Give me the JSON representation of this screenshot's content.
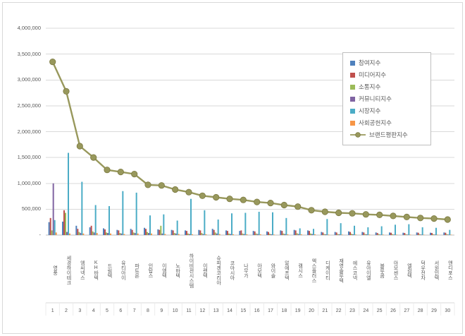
{
  "window": {
    "background": "#ffffff",
    "border_color": "#d9d9d9"
  },
  "axis_text_color": "#595959",
  "gridline_color": "#d9d9d9",
  "axis_line_color": "#bfbfbf",
  "chart_data": {
    "type": "bar",
    "subtype": "clustered-bars-with-line-overlay",
    "title": "",
    "legend_position": "right-top-inside",
    "grid": true,
    "categories": [
      "영풍",
      "세경하이테크",
      "엠씨넥스",
      "KH바텍",
      "드림텍",
      "유티아이",
      "파트론",
      "인탑스",
      "이엠텍",
      "노바텍",
      "하이비젼시스템",
      "이랜텍",
      "슈피겐코리아",
      "코아시아",
      "나무가",
      "아모텍",
      "와이솔",
      "알에프텍",
      "캠시스",
      "엑스플러스",
      "디케이티",
      "재영솔루텍",
      "에스코넥",
      "유아이엘",
      "블루콤",
      "아모센스",
      "엘컴텍",
      "덕우전자",
      "서원인텍",
      "앤디포스"
    ],
    "ranks": [
      "1",
      "2",
      "3",
      "4",
      "5",
      "6",
      "7",
      "8",
      "9",
      "10",
      "11",
      "12",
      "13",
      "14",
      "15",
      "16",
      "17",
      "18",
      "19",
      "20",
      "21",
      "22",
      "23",
      "24",
      "25",
      "26",
      "27",
      "28",
      "29",
      "30"
    ],
    "y_axis": {
      "min": 0,
      "max": 4000000,
      "tick_step": 500000,
      "tick_labels": [
        "-",
        "500,000",
        "1,000,000",
        "1,500,000",
        "2,000,000",
        "2,500,000",
        "3,000,000",
        "3,500,000",
        "4,000,000"
      ]
    },
    "series": [
      {
        "name": "참여지수",
        "type": "bar",
        "color": "#4F81BD",
        "values": [
          250000,
          260000,
          180000,
          150000,
          130000,
          100000,
          120000,
          140000,
          110000,
          100000,
          90000,
          100000,
          120000,
          90000,
          80000,
          80000,
          70000,
          90000,
          100000,
          90000,
          60000,
          60000,
          70000,
          60000,
          50000,
          50000,
          45000,
          50000,
          45000,
          50000
        ]
      },
      {
        "name": "미디어지수",
        "type": "bar",
        "color": "#C0504D",
        "values": [
          330000,
          480000,
          120000,
          180000,
          110000,
          90000,
          100000,
          120000,
          100000,
          90000,
          80000,
          90000,
          100000,
          80000,
          90000,
          70000,
          60000,
          80000,
          90000,
          80000,
          50000,
          50000,
          60000,
          50000,
          40000,
          45000,
          40000,
          45000,
          40000,
          45000
        ]
      },
      {
        "name": "소통지수",
        "type": "bar",
        "color": "#9BBB59",
        "values": [
          90000,
          430000,
          60000,
          70000,
          50000,
          40000,
          50000,
          60000,
          180000,
          40000,
          30000,
          40000,
          50000,
          30000,
          30000,
          30000,
          25000,
          30000,
          35000,
          30000,
          20000,
          20000,
          25000,
          20000,
          20000,
          18000,
          15000,
          18000,
          15000,
          18000
        ]
      },
      {
        "name": "커뮤니티지수",
        "type": "bar",
        "color": "#8064A2",
        "values": [
          1000000,
          60000,
          40000,
          50000,
          40000,
          30000,
          40000,
          40000,
          30000,
          30000,
          20000,
          20000,
          30000,
          20000,
          20000,
          20000,
          15000,
          20000,
          20000,
          20000,
          15000,
          15000,
          15000,
          15000,
          10000,
          10000,
          10000,
          10000,
          10000,
          10000
        ]
      },
      {
        "name": "시장지수",
        "type": "bar",
        "color": "#4BACC6",
        "values": [
          290000,
          1590000,
          1030000,
          580000,
          560000,
          850000,
          820000,
          380000,
          400000,
          280000,
          700000,
          480000,
          300000,
          420000,
          430000,
          450000,
          440000,
          330000,
          130000,
          120000,
          310000,
          230000,
          180000,
          150000,
          170000,
          200000,
          210000,
          150000,
          140000,
          100000
        ]
      },
      {
        "name": "사회공헌지수",
        "type": "bar",
        "color": "#F79646",
        "values": [
          50000,
          30000,
          30000,
          40000,
          30000,
          20000,
          30000,
          30000,
          20000,
          20000,
          15000,
          15000,
          20000,
          15000,
          15000,
          15000,
          10000,
          15000,
          15000,
          15000,
          10000,
          10000,
          10000,
          10000,
          10000,
          8000,
          8000,
          8000,
          8000,
          8000
        ]
      },
      {
        "name": "브랜드평판지수",
        "type": "line",
        "color": "#98985C",
        "marker_stroke": "#7c7a42",
        "values": [
          3350000,
          2780000,
          1720000,
          1500000,
          1260000,
          1220000,
          1180000,
          970000,
          960000,
          880000,
          830000,
          760000,
          730000,
          700000,
          680000,
          640000,
          620000,
          580000,
          550000,
          480000,
          450000,
          430000,
          420000,
          400000,
          390000,
          370000,
          350000,
          330000,
          320000,
          300000
        ]
      }
    ]
  }
}
